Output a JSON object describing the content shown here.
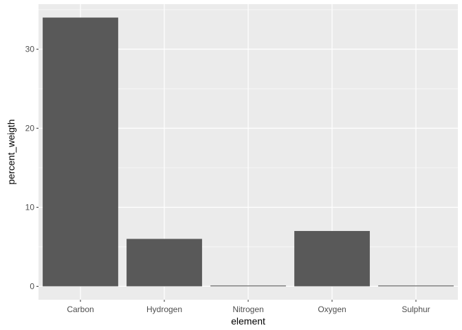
{
  "chart_data": {
    "type": "bar",
    "categories": [
      "Carbon",
      "Hydrogen",
      "Nitrogen",
      "Oxygen",
      "Sulphur"
    ],
    "values": [
      34,
      6,
      0.1,
      7,
      0.1
    ],
    "xlabel": "element",
    "ylabel": "percent_weigth",
    "ylim": [
      -1.7,
      35.7
    ],
    "yticks": [
      0,
      10,
      20,
      30
    ],
    "grid": true,
    "legend": "none",
    "colors": {
      "panel": "#ebebeb",
      "grid_major": "#ffffff",
      "bar": "#595959",
      "tick_text": "#4d4d4d",
      "tick_mark": "#333333"
    }
  }
}
